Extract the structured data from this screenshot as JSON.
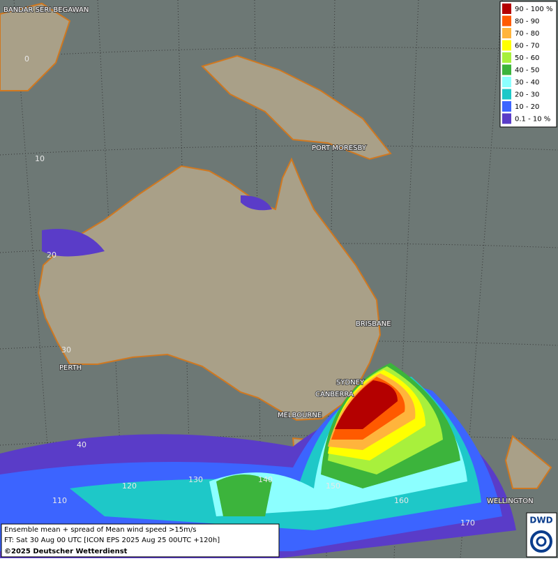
{
  "map": {
    "cities": [
      "BANDAR SERI BEGAWAN",
      "PORT MORESBY",
      "BRISBANE",
      "PERTH",
      "SYDNEY",
      "CANBERRA",
      "MELBOURNE",
      "WELLINGTON"
    ],
    "lat_labels": [
      "0",
      "10",
      "20",
      "30",
      "40"
    ],
    "lon_labels": [
      "110",
      "120",
      "130",
      "140",
      "150",
      "160",
      "170"
    ],
    "legend": [
      {
        "label": "90 - 100 %",
        "color": "#b40000"
      },
      {
        "label": "80 - 90",
        "color": "#ff5a00"
      },
      {
        "label": "70 - 80",
        "color": "#ffb43c"
      },
      {
        "label": "60 - 70",
        "color": "#ffff00"
      },
      {
        "label": "50 - 60",
        "color": "#a8f03c"
      },
      {
        "label": "40 - 50",
        "color": "#3cb43c"
      },
      {
        "label": "30 - 40",
        "color": "#8cffff"
      },
      {
        "label": "20 - 30",
        "color": "#1ec8c8"
      },
      {
        "label": "10 - 20",
        "color": "#3c64ff"
      },
      {
        "label": "0.1 - 10 %",
        "color": "#5a3cc8"
      }
    ],
    "caption": [
      "Ensemble mean + spread of Mean wind speed >15m/s",
      "FT: Sat 30 Aug 00 UTC [ICON EPS 2025 Aug 25 00UTC +120h]",
      "©2025 Deutscher Wetterdienst"
    ],
    "logo": "DWD"
  }
}
